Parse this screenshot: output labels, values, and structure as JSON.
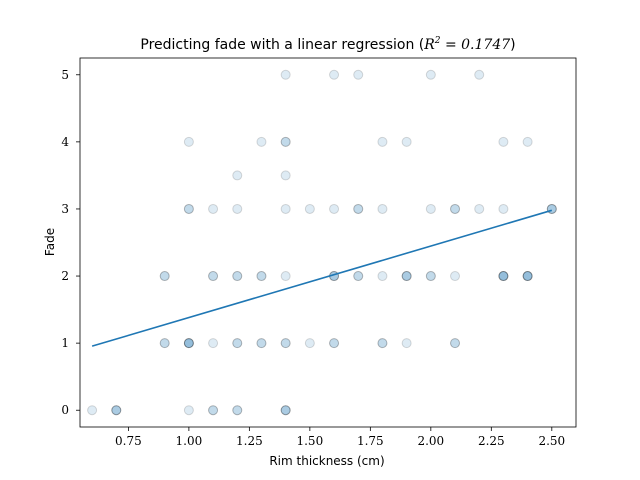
{
  "chart_data": {
    "type": "scatter",
    "title_prefix": "Predicting fade with a linear regression (",
    "title_math_var": "R",
    "title_math_exp": "2",
    "title_math_rest": " = 0.1747",
    "title_suffix": ")",
    "xlabel": "Rim thickness (cm)",
    "ylabel": "Fade",
    "xlim": [
      0.55,
      2.6
    ],
    "ylim": [
      -0.25,
      5.25
    ],
    "x_ticks": [
      0.75,
      1.0,
      1.25,
      1.5,
      1.75,
      2.0,
      2.25,
      2.5
    ],
    "x_tick_labels": [
      "0.75",
      "1.00",
      "1.25",
      "1.50",
      "1.75",
      "2.00",
      "2.25",
      "2.50"
    ],
    "y_ticks": [
      0,
      1,
      2,
      3,
      4,
      5
    ],
    "y_tick_labels": [
      "0",
      "1",
      "2",
      "3",
      "4",
      "5"
    ],
    "grid": false,
    "point_color": "#1f77b4",
    "point_alpha": 0.15,
    "line_color": "#1f77b4",
    "points": [
      [
        0.6,
        0
      ],
      [
        0.7,
        0
      ],
      [
        0.7,
        0
      ],
      [
        0.7,
        0
      ],
      [
        1.0,
        0
      ],
      [
        1.1,
        0
      ],
      [
        1.1,
        0
      ],
      [
        1.2,
        0
      ],
      [
        1.2,
        0
      ],
      [
        1.4,
        0
      ],
      [
        1.4,
        0
      ],
      [
        1.4,
        0
      ],
      [
        0.9,
        1
      ],
      [
        0.9,
        1
      ],
      [
        1.0,
        1
      ],
      [
        1.0,
        1
      ],
      [
        1.0,
        1
      ],
      [
        1.0,
        1
      ],
      [
        1.1,
        1
      ],
      [
        1.2,
        1
      ],
      [
        1.2,
        1
      ],
      [
        1.3,
        1
      ],
      [
        1.3,
        1
      ],
      [
        1.4,
        1
      ],
      [
        1.4,
        1
      ],
      [
        1.5,
        1
      ],
      [
        1.6,
        1
      ],
      [
        1.6,
        1
      ],
      [
        1.8,
        1
      ],
      [
        1.8,
        1
      ],
      [
        1.9,
        1
      ],
      [
        2.1,
        1
      ],
      [
        2.1,
        1
      ],
      [
        0.9,
        2
      ],
      [
        0.9,
        2
      ],
      [
        1.1,
        2
      ],
      [
        1.1,
        2
      ],
      [
        1.2,
        2
      ],
      [
        1.2,
        2
      ],
      [
        1.3,
        2
      ],
      [
        1.3,
        2
      ],
      [
        1.4,
        2
      ],
      [
        1.6,
        2
      ],
      [
        1.6,
        2
      ],
      [
        1.6,
        2
      ],
      [
        1.7,
        2
      ],
      [
        1.7,
        2
      ],
      [
        1.8,
        2
      ],
      [
        1.9,
        2
      ],
      [
        1.9,
        2
      ],
      [
        1.9,
        2
      ],
      [
        2.0,
        2
      ],
      [
        2.0,
        2
      ],
      [
        2.1,
        2
      ],
      [
        2.3,
        2
      ],
      [
        2.3,
        2
      ],
      [
        2.3,
        2
      ],
      [
        2.3,
        2
      ],
      [
        2.4,
        2
      ],
      [
        2.4,
        2
      ],
      [
        2.4,
        2
      ],
      [
        2.4,
        2
      ],
      [
        1.0,
        3
      ],
      [
        1.0,
        3
      ],
      [
        1.1,
        3
      ],
      [
        1.2,
        3
      ],
      [
        1.4,
        3
      ],
      [
        1.5,
        3
      ],
      [
        1.6,
        3
      ],
      [
        1.7,
        3
      ],
      [
        1.7,
        3
      ],
      [
        1.8,
        3
      ],
      [
        2.0,
        3
      ],
      [
        2.1,
        3
      ],
      [
        2.1,
        3
      ],
      [
        2.2,
        3
      ],
      [
        2.3,
        3
      ],
      [
        2.5,
        3
      ],
      [
        2.5,
        3
      ],
      [
        2.5,
        3
      ],
      [
        1.2,
        3.5
      ],
      [
        1.4,
        3.5
      ],
      [
        1.0,
        4
      ],
      [
        1.3,
        4
      ],
      [
        1.4,
        4
      ],
      [
        1.4,
        4
      ],
      [
        1.8,
        4
      ],
      [
        1.9,
        4
      ],
      [
        2.3,
        4
      ],
      [
        2.4,
        4
      ],
      [
        1.4,
        5
      ],
      [
        1.6,
        5
      ],
      [
        1.7,
        5
      ],
      [
        2.0,
        5
      ],
      [
        2.2,
        5
      ]
    ],
    "regression_line": {
      "x": [
        0.6,
        2.5
      ],
      "y": [
        0.955,
        2.98
      ]
    }
  }
}
